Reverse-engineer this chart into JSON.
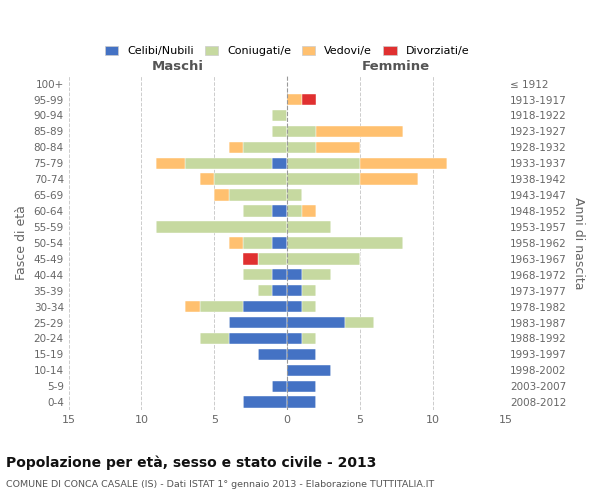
{
  "age_groups": [
    "0-4",
    "5-9",
    "10-14",
    "15-19",
    "20-24",
    "25-29",
    "30-34",
    "35-39",
    "40-44",
    "45-49",
    "50-54",
    "55-59",
    "60-64",
    "65-69",
    "70-74",
    "75-79",
    "80-84",
    "85-89",
    "90-94",
    "95-99",
    "100+"
  ],
  "birth_years": [
    "2008-2012",
    "2003-2007",
    "1998-2002",
    "1993-1997",
    "1988-1992",
    "1983-1987",
    "1978-1982",
    "1973-1977",
    "1968-1972",
    "1963-1967",
    "1958-1962",
    "1953-1957",
    "1948-1952",
    "1943-1947",
    "1938-1942",
    "1933-1937",
    "1928-1932",
    "1923-1927",
    "1918-1922",
    "1913-1917",
    "≤ 1912"
  ],
  "male": {
    "celibi": [
      3,
      1,
      0,
      2,
      4,
      4,
      3,
      1,
      1,
      0,
      1,
      0,
      1,
      0,
      0,
      1,
      0,
      0,
      0,
      0,
      0
    ],
    "coniugati": [
      0,
      0,
      0,
      0,
      2,
      0,
      3,
      1,
      2,
      2,
      2,
      9,
      2,
      4,
      5,
      6,
      3,
      1,
      1,
      0,
      0
    ],
    "vedovi": [
      0,
      0,
      0,
      0,
      0,
      0,
      1,
      0,
      0,
      0,
      1,
      0,
      0,
      1,
      1,
      2,
      1,
      0,
      0,
      0,
      0
    ],
    "divorziati": [
      0,
      0,
      0,
      0,
      0,
      0,
      0,
      0,
      0,
      1,
      0,
      0,
      0,
      0,
      0,
      0,
      0,
      0,
      0,
      0,
      0
    ]
  },
  "female": {
    "nubili": [
      2,
      2,
      3,
      2,
      1,
      4,
      1,
      1,
      1,
      0,
      0,
      0,
      0,
      0,
      0,
      0,
      0,
      0,
      0,
      0,
      0
    ],
    "coniugate": [
      0,
      0,
      0,
      0,
      1,
      2,
      1,
      1,
      2,
      5,
      8,
      3,
      1,
      1,
      5,
      5,
      2,
      2,
      0,
      0,
      0
    ],
    "vedove": [
      0,
      0,
      0,
      0,
      0,
      0,
      0,
      0,
      0,
      0,
      0,
      0,
      1,
      0,
      4,
      6,
      3,
      6,
      0,
      1,
      0
    ],
    "divorziate": [
      0,
      0,
      0,
      0,
      0,
      0,
      0,
      0,
      0,
      0,
      0,
      0,
      0,
      0,
      0,
      0,
      0,
      0,
      0,
      1,
      0
    ]
  },
  "colors": {
    "celibi_nubili": "#4472c4",
    "coniugati": "#c6d9a0",
    "vedovi": "#ffc06f",
    "divorziati": "#e03030"
  },
  "xlim": 15,
  "title": "Popolazione per età, sesso e stato civile - 2013",
  "subtitle": "COMUNE DI CONCA CASALE (IS) - Dati ISTAT 1° gennaio 2013 - Elaborazione TUTTITALIA.IT",
  "ylabel_left": "Fasce di età",
  "ylabel_right": "Anni di nascita",
  "legend_labels": [
    "Celibi/Nubili",
    "Coniugati/e",
    "Vedovi/e",
    "Divorziati/e"
  ]
}
